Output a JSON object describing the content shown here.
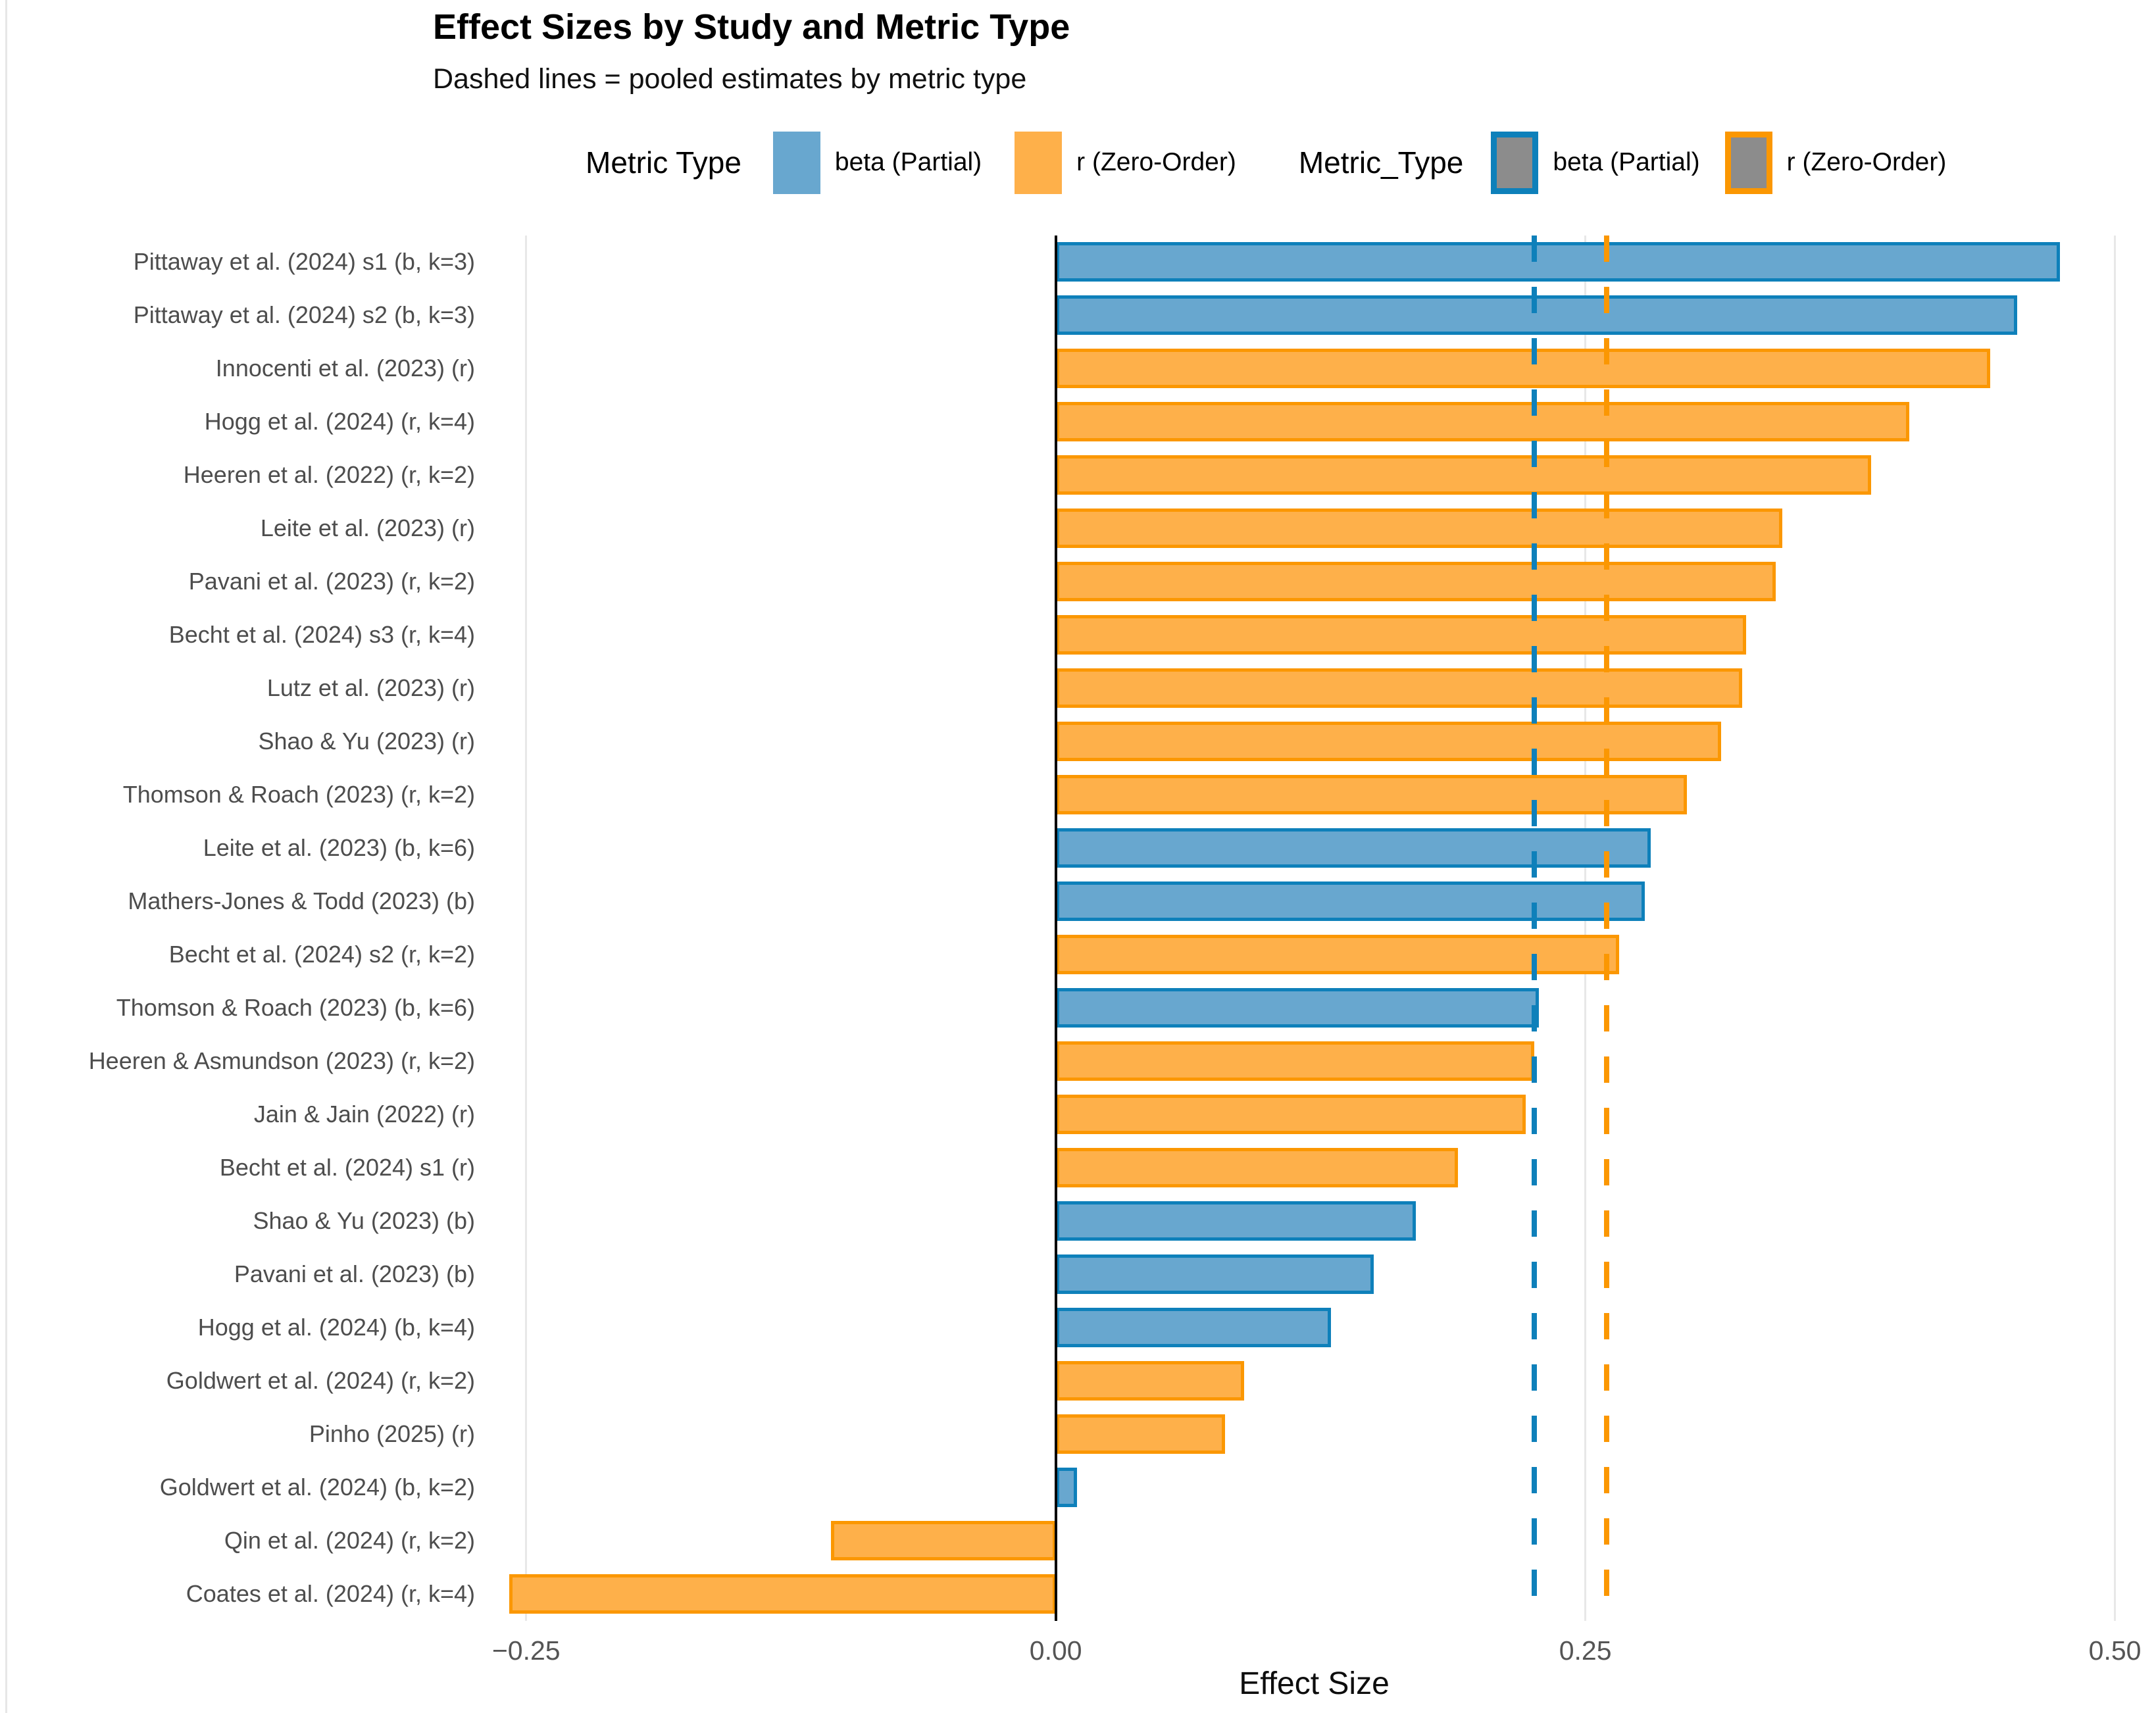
{
  "title": "Effect Sizes by Study and Metric Type",
  "subtitle": "Dashed lines = pooled estimates by metric type",
  "legends": [
    {
      "title": "Metric Type",
      "entries": [
        {
          "label": "beta (Partial)",
          "swatch": "solid-blue"
        },
        {
          "label": "r (Zero-Order)",
          "swatch": "solid-orange"
        }
      ]
    },
    {
      "title": "Metric_Type",
      "entries": [
        {
          "label": "beta (Partial)",
          "swatch": "gray-blue-border"
        },
        {
          "label": "r (Zero-Order)",
          "swatch": "gray-orange-border"
        }
      ]
    }
  ],
  "colors": {
    "beta_fill": "#68a7cf",
    "beta_border": "#0e80ba",
    "r_fill": "#feb04a",
    "r_border": "#fb9702",
    "pooled_beta_line": "#0e80ba",
    "pooled_r_line": "#fb9702",
    "grid": "#e8e8e8",
    "zero_line": "#000000",
    "legend_gray_fill": "#8c8c8c",
    "y_label_text": "#4d4d4d",
    "x_tick_text": "#555555"
  },
  "chart_data": {
    "type": "bar",
    "orientation": "horizontal",
    "title": "Effect Sizes by Study and Metric Type",
    "subtitle": "Dashed lines = pooled estimates by metric type",
    "xlabel": "Effect Size",
    "ylabel": "",
    "xlim": [
      -0.267,
      0.511
    ],
    "grid": "vertical-gridlines-on",
    "legend_position": "top",
    "x_ticks": [
      {
        "value": -0.25,
        "label": "−0.25"
      },
      {
        "value": 0.0,
        "label": "0.00"
      },
      {
        "value": 0.25,
        "label": "0.25"
      },
      {
        "value": 0.5,
        "label": "0.50"
      }
    ],
    "bars": [
      {
        "label": "Pittaway et al. (2024) s1 (b, k=3)",
        "metric": "beta",
        "value": 0.474
      },
      {
        "label": "Pittaway et al. (2024) s2 (b, k=3)",
        "metric": "beta",
        "value": 0.454
      },
      {
        "label": "Innocenti et al. (2023) (r)",
        "metric": "r",
        "value": 0.441
      },
      {
        "label": "Hogg et al. (2024) (r, k=4)",
        "metric": "r",
        "value": 0.403
      },
      {
        "label": "Heeren et al. (2022) (r, k=2)",
        "metric": "r",
        "value": 0.385
      },
      {
        "label": "Leite et al. (2023) (r)",
        "metric": "r",
        "value": 0.343
      },
      {
        "label": "Pavani et al. (2023) (r, k=2)",
        "metric": "r",
        "value": 0.34
      },
      {
        "label": "Becht et al. (2024) s3 (r, k=4)",
        "metric": "r",
        "value": 0.326
      },
      {
        "label": "Lutz et al. (2023) (r)",
        "metric": "r",
        "value": 0.324
      },
      {
        "label": "Shao & Yu (2023) (r)",
        "metric": "r",
        "value": 0.314
      },
      {
        "label": "Thomson & Roach (2023) (r, k=2)",
        "metric": "r",
        "value": 0.298
      },
      {
        "label": "Leite et al. (2023) (b, k=6)",
        "metric": "beta",
        "value": 0.281
      },
      {
        "label": "Mathers-Jones & Todd (2023) (b)",
        "metric": "beta",
        "value": 0.278
      },
      {
        "label": "Becht et al. (2024) s2 (r, k=2)",
        "metric": "r",
        "value": 0.266
      },
      {
        "label": "Thomson & Roach (2023) (b, k=6)",
        "metric": "beta",
        "value": 0.228
      },
      {
        "label": "Heeren & Asmundson (2023) (r, k=2)",
        "metric": "r",
        "value": 0.226
      },
      {
        "label": "Jain & Jain (2022) (r)",
        "metric": "r",
        "value": 0.222
      },
      {
        "label": "Becht et al. (2024) s1 (r)",
        "metric": "r",
        "value": 0.19
      },
      {
        "label": "Shao & Yu (2023) (b)",
        "metric": "beta",
        "value": 0.17
      },
      {
        "label": "Pavani et al. (2023) (b)",
        "metric": "beta",
        "value": 0.15
      },
      {
        "label": "Hogg et al. (2024) (b, k=4)",
        "metric": "beta",
        "value": 0.13
      },
      {
        "label": "Goldwert et al. (2024) (r, k=2)",
        "metric": "r",
        "value": 0.089
      },
      {
        "label": "Pinho (2025) (r)",
        "metric": "r",
        "value": 0.08
      },
      {
        "label": "Goldwert et al. (2024) (b, k=2)",
        "metric": "beta",
        "value": 0.01
      },
      {
        "label": "Qin et al. (2024) (r, k=2)",
        "metric": "r",
        "value": -0.106
      },
      {
        "label": "Coates et al. (2024) (r, k=4)",
        "metric": "r",
        "value": -0.258
      }
    ],
    "pooled_estimates": [
      {
        "metric": "beta",
        "label": "beta (Partial)",
        "value": 0.226
      },
      {
        "metric": "r",
        "label": "r (Zero-Order)",
        "value": 0.26
      }
    ]
  }
}
